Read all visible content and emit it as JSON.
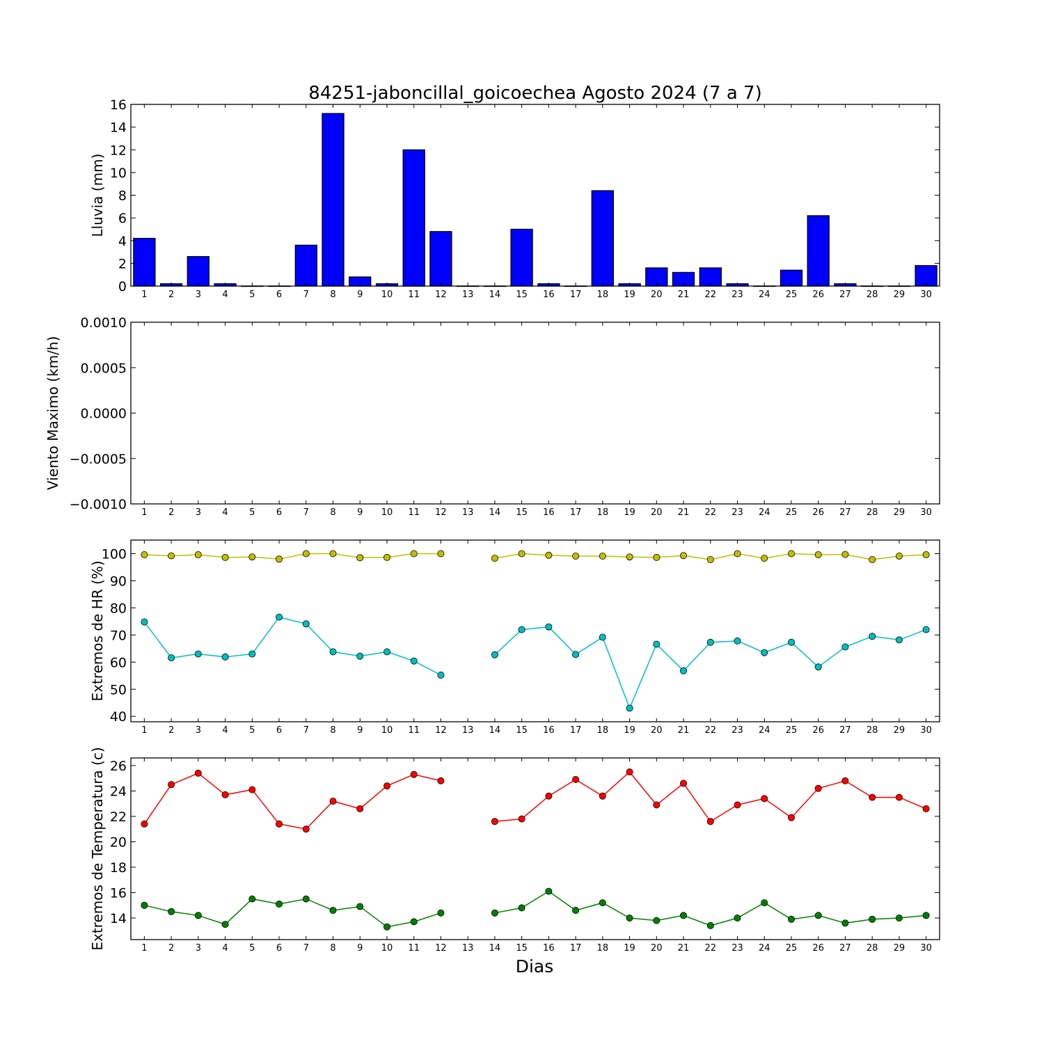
{
  "title": "84251-jaboncillal_goicoechea Agosto 2024  (7 a 7)",
  "xlabel": "Dias",
  "chart_data": [
    {
      "type": "bar",
      "ylabel": "Lluvia (mm)",
      "x": [
        1,
        2,
        3,
        4,
        5,
        6,
        7,
        8,
        9,
        10,
        11,
        12,
        13,
        14,
        15,
        16,
        17,
        18,
        19,
        20,
        21,
        22,
        23,
        24,
        25,
        26,
        27,
        28,
        29,
        30
      ],
      "values": [
        4.2,
        0.2,
        2.6,
        0.2,
        0.0,
        0.0,
        3.6,
        15.2,
        0.8,
        0.2,
        12.0,
        4.8,
        0.0,
        0.0,
        5.0,
        0.2,
        0.0,
        8.4,
        0.2,
        1.6,
        1.2,
        1.6,
        0.2,
        0.0,
        1.4,
        6.2,
        0.2,
        0.0,
        0.0,
        1.8
      ],
      "xlim": [
        0.5,
        30.5
      ],
      "ylim": [
        0,
        16
      ],
      "yticks": [
        "0",
        "2",
        "4",
        "6",
        "8",
        "10",
        "12",
        "14",
        "16"
      ],
      "color": "#0000ff"
    },
    {
      "type": "line",
      "ylabel": "Viento Maximo (km/h)",
      "x": [],
      "series": [],
      "xlim": [
        0.5,
        30.5
      ],
      "ylim": [
        -0.001,
        0.001
      ],
      "yticks": [
        "−0.0010",
        "−0.0005",
        "0.0000",
        "0.0005",
        "0.0010"
      ]
    },
    {
      "type": "line",
      "ylabel": "Extremos de HR (%)",
      "x": [
        1,
        2,
        3,
        4,
        5,
        6,
        7,
        8,
        9,
        10,
        11,
        12,
        13,
        14,
        15,
        16,
        17,
        18,
        19,
        20,
        21,
        22,
        23,
        24,
        25,
        26,
        27,
        28,
        29,
        30
      ],
      "xlim": [
        0.5,
        30.5
      ],
      "ylim": [
        38,
        105
      ],
      "yticks": [
        "40",
        "50",
        "60",
        "70",
        "80",
        "90",
        "100"
      ],
      "series": [
        {
          "color": "#bfbf00",
          "values": [
            99.6,
            99.2,
            99.6,
            98.6,
            98.8,
            98.0,
            100,
            100,
            98.5,
            98.6,
            100,
            100,
            null,
            98.3,
            100,
            99.4,
            99.1,
            99.1,
            98.8,
            98.6,
            99.3,
            97.8,
            100,
            98.3,
            100,
            99.6,
            99.7,
            97.8,
            99.1,
            99.6
          ]
        },
        {
          "color": "#00bfbf",
          "values": [
            74.8,
            61.6,
            63.0,
            61.9,
            63.0,
            76.6,
            74.1,
            63.8,
            62.2,
            63.8,
            60.4,
            55.2,
            null,
            62.7,
            72.0,
            73.0,
            62.8,
            69.2,
            43.0,
            66.6,
            56.8,
            67.3,
            67.8,
            63.5,
            67.3,
            58.2,
            65.6,
            69.5,
            68.2,
            72.0
          ]
        }
      ]
    },
    {
      "type": "line",
      "ylabel": "Extremos de Temperatura (c)",
      "x": [
        1,
        2,
        3,
        4,
        5,
        6,
        7,
        8,
        9,
        10,
        11,
        12,
        13,
        14,
        15,
        16,
        17,
        18,
        19,
        20,
        21,
        22,
        23,
        24,
        25,
        26,
        27,
        28,
        29,
        30
      ],
      "xlim": [
        0.5,
        30.5
      ],
      "ylim": [
        12.3,
        26.6
      ],
      "yticks": [
        "14",
        "16",
        "18",
        "20",
        "22",
        "24",
        "26"
      ],
      "series": [
        {
          "color": "#ff0000",
          "values": [
            21.4,
            24.5,
            25.4,
            23.7,
            24.1,
            21.4,
            21.0,
            23.2,
            22.6,
            24.4,
            25.3,
            24.8,
            null,
            21.6,
            21.8,
            23.6,
            24.9,
            23.6,
            25.5,
            22.9,
            24.6,
            21.6,
            22.9,
            23.4,
            21.9,
            24.2,
            24.8,
            23.5,
            23.5,
            22.6
          ]
        },
        {
          "color": "#008000",
          "values": [
            15.0,
            14.5,
            14.2,
            13.5,
            15.5,
            15.1,
            15.5,
            14.6,
            14.9,
            13.3,
            13.7,
            14.4,
            null,
            14.4,
            14.8,
            16.1,
            14.6,
            15.2,
            14.0,
            13.8,
            14.2,
            13.4,
            14.0,
            15.2,
            13.9,
            14.2,
            13.6,
            13.9,
            14.0,
            14.2
          ]
        }
      ]
    }
  ]
}
